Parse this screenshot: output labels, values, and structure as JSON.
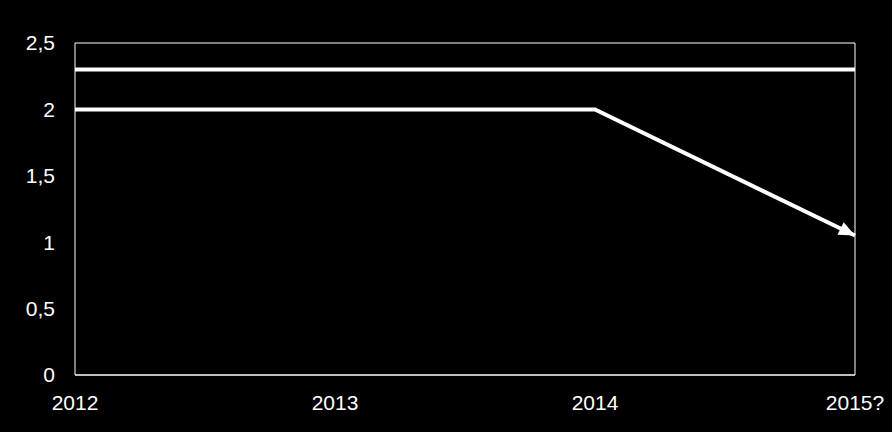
{
  "chart_data": {
    "type": "line",
    "categories": [
      "2012",
      "2013",
      "2014",
      "2015?"
    ],
    "series": [
      {
        "color": "#ffffff",
        "values": [
          2.3,
          2.3,
          2.3,
          2.3
        ]
      },
      {
        "color": "#ffffff",
        "values": [
          2,
          2,
          2,
          1.05
        ],
        "marker": "arrow"
      }
    ],
    "ylim": [
      0,
      2.5
    ],
    "yticks": [
      0,
      {
        "value": 0.5,
        "label": "0,5"
      },
      1,
      {
        "value": 1.5,
        "label": "1,5"
      },
      2,
      {
        "value": 2.5,
        "label": "2,5"
      }
    ],
    "grid": true
  }
}
